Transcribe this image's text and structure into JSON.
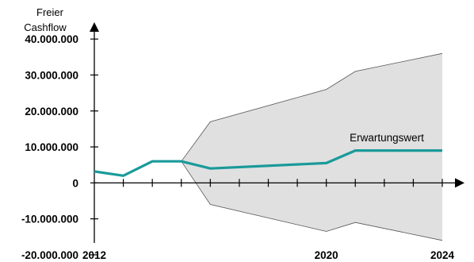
{
  "chart_data": {
    "type": "line",
    "ylabel_line1": "Freier",
    "ylabel_line2": "Cashflow",
    "annotation": "Erwartungswert",
    "xlim": [
      2012,
      2024
    ],
    "ylim": [
      -22000000,
      46000000
    ],
    "y_ticks": [
      {
        "value": 40000000,
        "label": "40.000.000"
      },
      {
        "value": 30000000,
        "label": "30.000.000"
      },
      {
        "value": 20000000,
        "label": "20.000.000"
      },
      {
        "value": 10000000,
        "label": "10.000.000"
      },
      {
        "value": 0,
        "label": "0"
      },
      {
        "value": -10000000,
        "label": "-10.000.000"
      },
      {
        "value": -20000000,
        "label": "-20.000.000"
      }
    ],
    "x_ticks": [
      2013,
      2014,
      2015,
      2016,
      2017,
      2018,
      2019,
      2020,
      2021,
      2022,
      2023,
      2024
    ],
    "x_tick_labels": [
      {
        "value": 2012,
        "label": "2012"
      },
      {
        "value": 2020,
        "label": "2020"
      },
      {
        "value": 2024,
        "label": "2024"
      }
    ],
    "series": [
      {
        "x": [
          2012,
          2013,
          2014,
          2015,
          2016,
          2020,
          2021,
          2024
        ],
        "values": [
          3200000,
          2000000,
          6000000,
          6000000,
          4000000,
          5500000,
          9000000,
          9000000
        ],
        "color": "#1a9a9a"
      }
    ],
    "band": {
      "x": [
        2015,
        2016,
        2020,
        2021,
        2024
      ],
      "upper": [
        6000000,
        17000000,
        26000000,
        31000000,
        36000000
      ],
      "lower": [
        6000000,
        -6000000,
        -13500000,
        -11000000,
        -16000000
      ],
      "fill": "#e0e0e0",
      "edge": "#555555"
    }
  }
}
